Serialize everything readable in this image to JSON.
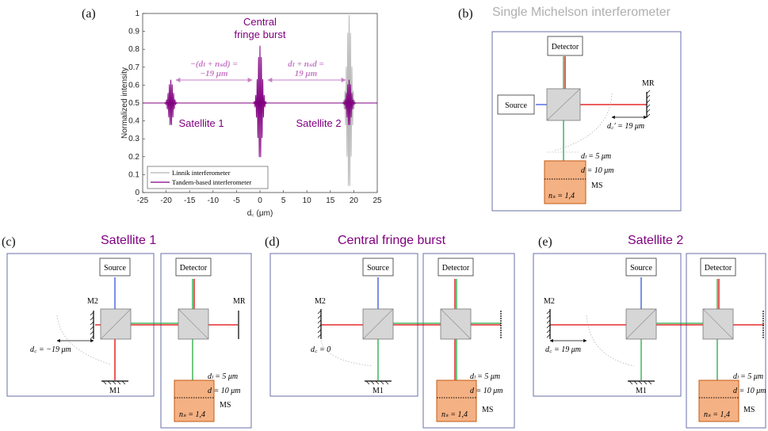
{
  "colors": {
    "purple": "#800080",
    "gray_trace": "#b5b5b5",
    "beam_red": "#e00000",
    "beam_green": "#22aa44",
    "beam_blue": "#3355dd",
    "sample_fill": "#f4b183",
    "sample_stroke": "#c55a11",
    "frame_stroke": "#6a6fa8"
  },
  "panel_a": {
    "label": "(a)",
    "annotation_center": "Central\nfringe burst",
    "annotation_left_eq": "−(dₗ + nₛd) =",
    "annotation_left_val": "−19 μm",
    "annotation_right_eq": "dₗ + nₛd  =",
    "annotation_right_val": "19 μm",
    "satellite1": "Satellite 1",
    "satellite2": "Satellite 2",
    "legend": [
      "Linnik interferometer",
      "Tandem-based interferometer"
    ]
  },
  "chart_data": {
    "type": "line",
    "xlabel": "d꜀ (μm)",
    "ylabel": "Normalized intensity",
    "xlim": [
      -25,
      25
    ],
    "ylim": [
      0,
      1
    ],
    "x_ticks": [
      "-25",
      "-20",
      "-15",
      "-10",
      "-5",
      "0",
      "5",
      "10",
      "15",
      "20",
      "25"
    ],
    "y_ticks": [
      "0",
      "0.1",
      "0.2",
      "0.3",
      "0.4",
      "0.5",
      "0.6",
      "0.7",
      "0.8",
      "0.9",
      "1"
    ],
    "baseline": 0.5,
    "series": [
      {
        "name": "Linnik interferometer",
        "color": "#b5b5b5",
        "bursts": [
          {
            "center": 19,
            "amplitude": 0.49
          }
        ]
      },
      {
        "name": "Tandem-based interferometer",
        "color": "#800080",
        "bursts": [
          {
            "center": -19,
            "amplitude": 0.13
          },
          {
            "center": 0,
            "amplitude": 0.32
          },
          {
            "center": 19,
            "amplitude": 0.13
          }
        ]
      }
    ],
    "grid": false,
    "legend_position": "bottom-left"
  },
  "panel_b": {
    "label": "(b)",
    "title": "Single Michelson interferometer",
    "detector": "Detector",
    "source": "Source",
    "mr": "MR",
    "dc": "d꜀′ = 19 μm",
    "dl": "dₗ = 5 μm",
    "d": "d = 10 μm",
    "ns": "nₛ = 1,4",
    "ms": "MS"
  },
  "panel_c": {
    "label": "(c)",
    "title": "Satellite 1",
    "source": "Source",
    "detector": "Detector",
    "m2": "M2",
    "m1": "M1",
    "mr": "MR",
    "dc": "d꜀ = −19 μm",
    "dl": "dₗ = 5 μm",
    "d": "d = 10 μm",
    "ns": "nₛ = 1,4",
    "ms": "MS"
  },
  "panel_d": {
    "label": "(d)",
    "title": "Central fringe burst",
    "source": "Source",
    "detector": "Detector",
    "m2": "M2",
    "m1": "M1",
    "dc": "d꜀ = 0",
    "dl": "dₗ = 5 μm",
    "d": "d = 10 μm",
    "ns": "nₛ = 1,4",
    "ms": "MS"
  },
  "panel_e": {
    "label": "(e)",
    "title": "Satellite 2",
    "source": "Source",
    "detector": "Detector",
    "m2": "M2",
    "m1": "M1",
    "dc": "d꜀ = 19 μm",
    "dl": "dₗ = 5 μm",
    "d": "d = 10 μm",
    "ns": "nₛ = 1,4",
    "ms": "MS"
  }
}
